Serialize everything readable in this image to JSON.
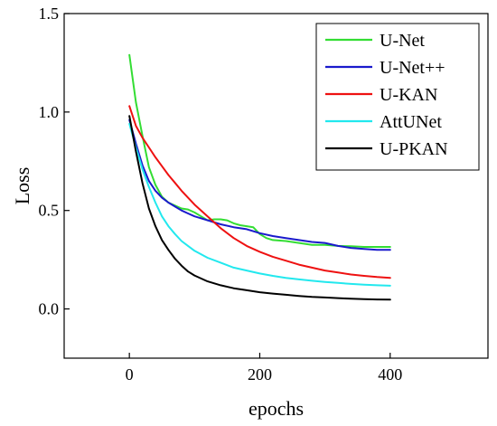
{
  "chart_data": {
    "type": "line",
    "title": "",
    "xlabel": "epochs",
    "ylabel": "Loss",
    "xlim": [
      -100,
      550
    ],
    "ylim": [
      -0.25,
      1.5
    ],
    "xticks": [
      0,
      200,
      400
    ],
    "yticks": [
      0.0,
      0.5,
      1.0,
      1.5
    ],
    "xtick_labels": [
      "0",
      "200",
      "400"
    ],
    "ytick_labels": [
      "0.0",
      "0.5",
      "1.0",
      "1.5"
    ],
    "grid": false,
    "legend_position": "top-right",
    "series": [
      {
        "name": "U-Net",
        "color": "#33dd33",
        "x": [
          0,
          10,
          20,
          30,
          40,
          50,
          60,
          70,
          80,
          90,
          100,
          110,
          120,
          130,
          140,
          150,
          160,
          170,
          180,
          190,
          200,
          210,
          220,
          240,
          260,
          280,
          300,
          320,
          340,
          360,
          380,
          400
        ],
        "y": [
          1.29,
          1.05,
          0.88,
          0.72,
          0.63,
          0.57,
          0.54,
          0.525,
          0.51,
          0.505,
          0.49,
          0.47,
          0.45,
          0.455,
          0.455,
          0.45,
          0.435,
          0.425,
          0.42,
          0.415,
          0.38,
          0.36,
          0.35,
          0.345,
          0.335,
          0.325,
          0.325,
          0.32,
          0.318,
          0.315,
          0.315,
          0.315
        ]
      },
      {
        "name": "U-Net++",
        "color": "#1a1acc",
        "x": [
          0,
          10,
          20,
          30,
          40,
          50,
          60,
          70,
          80,
          90,
          100,
          120,
          140,
          160,
          180,
          200,
          220,
          240,
          260,
          280,
          300,
          320,
          340,
          360,
          380,
          400
        ],
        "y": [
          0.96,
          0.84,
          0.73,
          0.65,
          0.6,
          0.565,
          0.54,
          0.52,
          0.5,
          0.485,
          0.47,
          0.45,
          0.43,
          0.415,
          0.405,
          0.385,
          0.37,
          0.36,
          0.35,
          0.34,
          0.335,
          0.32,
          0.31,
          0.305,
          0.3,
          0.3
        ]
      },
      {
        "name": "U-KAN",
        "color": "#ee1111",
        "x": [
          0,
          10,
          20,
          30,
          40,
          50,
          60,
          70,
          80,
          90,
          100,
          120,
          140,
          160,
          180,
          200,
          220,
          240,
          260,
          280,
          300,
          320,
          340,
          360,
          380,
          400
        ],
        "y": [
          1.03,
          0.93,
          0.87,
          0.82,
          0.77,
          0.725,
          0.68,
          0.64,
          0.6,
          0.565,
          0.53,
          0.47,
          0.41,
          0.36,
          0.32,
          0.29,
          0.265,
          0.245,
          0.225,
          0.21,
          0.195,
          0.185,
          0.175,
          0.168,
          0.162,
          0.158
        ]
      },
      {
        "name": "AttUNet",
        "color": "#22e8ee",
        "x": [
          0,
          10,
          20,
          30,
          40,
          50,
          60,
          70,
          80,
          90,
          100,
          120,
          140,
          160,
          180,
          200,
          220,
          240,
          260,
          280,
          300,
          320,
          340,
          360,
          380,
          400
        ],
        "y": [
          0.94,
          0.82,
          0.71,
          0.62,
          0.54,
          0.47,
          0.42,
          0.38,
          0.345,
          0.32,
          0.295,
          0.26,
          0.235,
          0.21,
          0.195,
          0.18,
          0.168,
          0.158,
          0.15,
          0.143,
          0.137,
          0.132,
          0.127,
          0.123,
          0.12,
          0.118
        ]
      },
      {
        "name": "U-PKAN",
        "color": "#000000",
        "x": [
          0,
          10,
          20,
          30,
          40,
          50,
          60,
          70,
          80,
          90,
          100,
          120,
          140,
          160,
          180,
          200,
          220,
          240,
          260,
          280,
          300,
          320,
          340,
          360,
          380,
          400
        ],
        "y": [
          0.98,
          0.8,
          0.64,
          0.51,
          0.42,
          0.35,
          0.3,
          0.255,
          0.22,
          0.19,
          0.17,
          0.14,
          0.12,
          0.105,
          0.095,
          0.085,
          0.078,
          0.072,
          0.066,
          0.061,
          0.058,
          0.055,
          0.052,
          0.05,
          0.048,
          0.047
        ]
      }
    ]
  }
}
